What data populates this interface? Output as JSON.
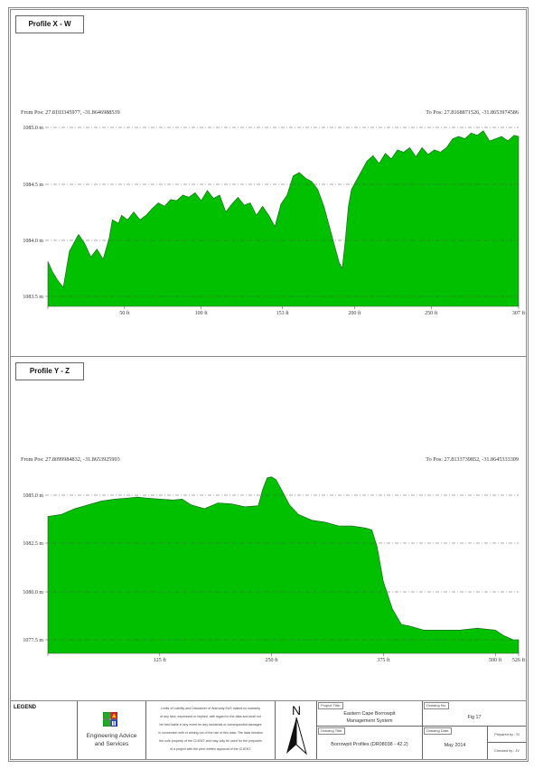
{
  "panels": {
    "top": {
      "title": "Profile X - W",
      "from_pos": "From Pos: 27.8103345977, -31.8646988539",
      "to_pos": "To Pos: 27.8168871526, -31.8653974586"
    },
    "bottom": {
      "title": "Profile Y - Z",
      "from_pos": "From Pos: 27.8099984832, -31.8653925903",
      "to_pos": "To Pos: 27.8133739852, -31.8645333309"
    }
  },
  "legend": {
    "label": "LEGEND",
    "company_line1": "Engineering Advice",
    "company_line2": "and Services",
    "disclaimer_lines": [
      "Limits of Liability and Disclaimer of Warranty EAS makes no warranty",
      "of any kind, expressed or implied, with regard to the data and shall not",
      "be held liable in any event for any incidental or consequential damages",
      "in connection with or arising out of the use of this data. The data remains",
      "the sole property of the CLIENT and may only be used for the purposes",
      "of a project with the prior written approval of the CLIENT."
    ],
    "north_label": "N"
  },
  "title_block": {
    "project_title_label": "Project Title:",
    "project_title_line1": "Eastern Cape Borrowpit",
    "project_title_line2": "Management System",
    "drawing_no_label": "Drawing No:",
    "drawing_no": "Fig 17",
    "drawing_title_label": "Drawing Title:",
    "drawing_title": "Borrowpit Profiles (DR08038 - 42.2)",
    "drawing_date_label": "Drawing Date:",
    "drawing_date": "May 2014",
    "prepared_by": "Prepared by : SI",
    "checked_by": "Checked by : JV"
  },
  "colors": {
    "fill": "#00c000",
    "outline": "#1a5a1a",
    "grid": "#555555"
  },
  "chart_data": [
    {
      "type": "area",
      "title": "Profile X - W",
      "xlabel": "",
      "ylabel": "",
      "x_unit": "ft",
      "y_unit": "m",
      "xlim": [
        0,
        307
      ],
      "ylim": [
        1083.4,
        1085.0
      ],
      "grid": true,
      "x_tick_labels": [
        "50 ft",
        "100 ft",
        "153 ft",
        "200 ft",
        "250 ft",
        "307 ft"
      ],
      "x_ticks": [
        50,
        100,
        153,
        200,
        250,
        307
      ],
      "y_tick_labels": [
        "1083.5 m",
        "1084.0 m",
        "1084.5 m",
        "1085.0 m"
      ],
      "y_ticks": [
        1083.5,
        1084.0,
        1084.5,
        1085.0
      ],
      "x": [
        0,
        3,
        6,
        10,
        14,
        18,
        20,
        24,
        28,
        32,
        36,
        40,
        42,
        46,
        48,
        52,
        56,
        60,
        64,
        68,
        72,
        76,
        80,
        84,
        88,
        92,
        96,
        100,
        104,
        108,
        112,
        116,
        120,
        124,
        128,
        132,
        136,
        140,
        144,
        148,
        152,
        156,
        160,
        164,
        168,
        172,
        176,
        180,
        184,
        188,
        190,
        192,
        194,
        196,
        198,
        200,
        204,
        208,
        212,
        216,
        220,
        224,
        228,
        232,
        236,
        240,
        244,
        248,
        252,
        256,
        260,
        264,
        268,
        272,
        276,
        280,
        284,
        288,
        292,
        296,
        300,
        304,
        307
      ],
      "values": [
        1083.81,
        1083.72,
        1083.65,
        1083.58,
        1083.9,
        1084.0,
        1084.05,
        1083.97,
        1083.85,
        1083.92,
        1083.83,
        1084.02,
        1084.18,
        1084.15,
        1084.22,
        1084.18,
        1084.25,
        1084.18,
        1084.22,
        1084.28,
        1084.33,
        1084.3,
        1084.36,
        1084.35,
        1084.4,
        1084.38,
        1084.42,
        1084.35,
        1084.44,
        1084.37,
        1084.4,
        1084.25,
        1084.32,
        1084.38,
        1084.31,
        1084.33,
        1084.22,
        1084.3,
        1084.22,
        1084.12,
        1084.32,
        1084.4,
        1084.57,
        1084.6,
        1084.55,
        1084.52,
        1084.45,
        1084.3,
        1084.1,
        1083.9,
        1083.8,
        1083.75,
        1084.0,
        1084.3,
        1084.45,
        1084.5,
        1084.6,
        1084.7,
        1084.75,
        1084.68,
        1084.77,
        1084.72,
        1084.8,
        1084.78,
        1084.82,
        1084.74,
        1084.82,
        1084.76,
        1084.8,
        1084.78,
        1084.82,
        1084.9,
        1084.92,
        1084.9,
        1084.95,
        1084.93,
        1084.97,
        1084.88,
        1084.9,
        1084.92,
        1084.88,
        1084.93,
        1084.92
      ]
    },
    {
      "type": "area",
      "title": "Profile Y - Z",
      "xlabel": "",
      "ylabel": "",
      "x_unit": "ft",
      "y_unit": "m",
      "xlim": [
        0,
        526
      ],
      "ylim": [
        1076.5,
        1086.5
      ],
      "grid": true,
      "x_tick_labels": [
        "125 ft",
        "250 ft",
        "375 ft",
        "500 ft",
        "526 ft"
      ],
      "x_ticks": [
        125,
        250,
        375,
        500,
        526
      ],
      "y_tick_labels": [
        "1077.5 m",
        "1080.0 m",
        "1082.5 m",
        "1085.0 m"
      ],
      "y_ticks": [
        1077.5,
        1080.0,
        1082.5,
        1085.0
      ],
      "x": [
        0,
        15,
        30,
        45,
        60,
        75,
        90,
        100,
        110,
        125,
        140,
        150,
        160,
        175,
        190,
        205,
        220,
        235,
        240,
        245,
        250,
        255,
        262,
        270,
        280,
        295,
        310,
        325,
        340,
        355,
        362,
        368,
        375,
        385,
        395,
        405,
        420,
        440,
        460,
        480,
        500,
        510,
        520,
        526
      ],
      "values": [
        1083.9,
        1084.0,
        1084.3,
        1084.5,
        1084.7,
        1084.8,
        1084.85,
        1084.9,
        1084.85,
        1084.8,
        1084.75,
        1084.8,
        1084.5,
        1084.3,
        1084.6,
        1084.55,
        1084.4,
        1084.45,
        1085.3,
        1085.9,
        1085.95,
        1085.8,
        1085.2,
        1084.5,
        1084.0,
        1083.7,
        1083.6,
        1083.4,
        1083.4,
        1083.3,
        1083.2,
        1082.3,
        1080.5,
        1079.1,
        1078.3,
        1078.2,
        1078.0,
        1078.0,
        1078.0,
        1078.1,
        1078.0,
        1077.7,
        1077.5,
        1077.5
      ]
    }
  ]
}
